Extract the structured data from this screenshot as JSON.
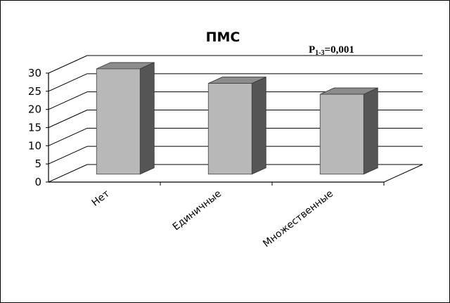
{
  "chart_data": {
    "type": "bar",
    "title": "ПМС",
    "categories": [
      "Нет",
      "Единичные",
      "Множественные"
    ],
    "values": [
      29,
      25,
      22
    ],
    "ylim": [
      0,
      30
    ],
    "yticks": [
      0,
      5,
      10,
      15,
      20,
      25,
      30
    ],
    "xlabel": "",
    "ylabel": "",
    "grid": true,
    "style": "3d",
    "annotation": {
      "main": "P",
      "subscript": "1-3",
      "value": "=0,001"
    },
    "colors": {
      "bar_front": "#b8b8b8",
      "bar_side": "#555555",
      "bar_top": "#8c8c8c",
      "grid": "#000000"
    }
  }
}
